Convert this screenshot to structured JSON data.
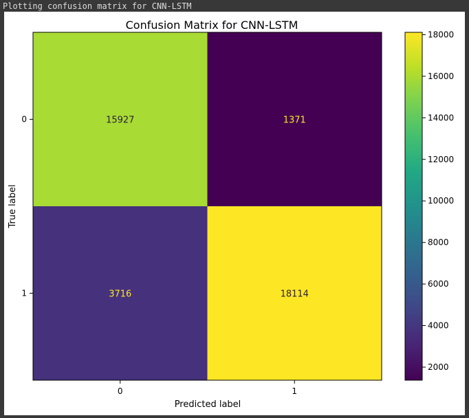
{
  "console": {
    "output_text": "Plotting confusion matrix for CNN-LSTM"
  },
  "chart_data": {
    "type": "heatmap",
    "title": "Confusion Matrix for CNN-LSTM",
    "xlabel": "Predicted label",
    "ylabel": "True label",
    "x_tick_labels": [
      "0",
      "1"
    ],
    "y_tick_labels": [
      "0",
      "1"
    ],
    "matrix": [
      [
        15927,
        1371
      ],
      [
        3716,
        18114
      ]
    ],
    "colormap": "viridis",
    "colorbar": {
      "range": [
        1371,
        18114
      ],
      "ticks": [
        2000,
        4000,
        6000,
        8000,
        10000,
        12000,
        14000,
        16000,
        18000
      ],
      "tick_labels": [
        "2000",
        "4000",
        "6000",
        "8000",
        "10000",
        "12000",
        "14000",
        "16000",
        "18000"
      ]
    },
    "grid": false
  }
}
